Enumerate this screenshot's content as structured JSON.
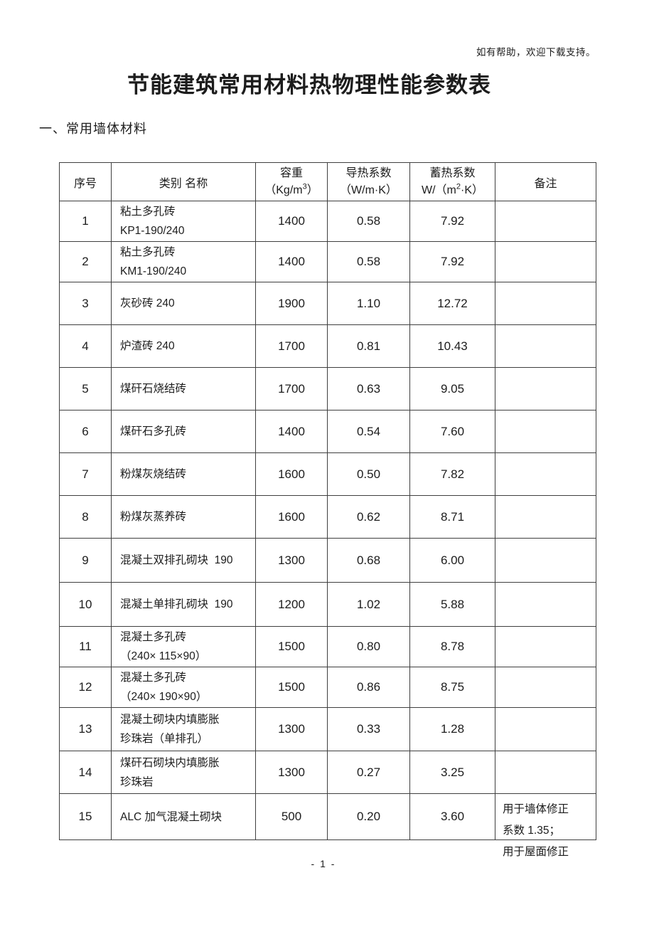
{
  "page": {
    "top_note": "如有帮助，欢迎下载支持。",
    "title": "节能建筑常用材料热物理性能参数表",
    "section_heading": "一、常用墙体材料",
    "page_number": "- 1 -"
  },
  "table": {
    "headers": {
      "index": "序号",
      "name": "类别 名称",
      "density_line1": "容重",
      "density_unit_pre": "（Kg/m",
      "density_unit_sup": "3",
      "density_unit_post": "）",
      "conductivity_line1": "导热系数",
      "conductivity_line2": "（W/m·K）",
      "storage_line1": "蓄热系数",
      "storage_unit_pre": "W/（m",
      "storage_unit_sup": "2",
      "storage_unit_post": "·K）",
      "remark": "备注"
    },
    "rows": [
      {
        "index": "1",
        "name_lines": [
          "粘土多孔砖",
          "KP1-190/240"
        ],
        "density": "1400",
        "conductivity": "0.58",
        "storage": "7.92",
        "remark_lines": []
      },
      {
        "index": "2",
        "name_lines": [
          "粘土多孔砖",
          "KM1-190/240"
        ],
        "density": "1400",
        "conductivity": "0.58",
        "storage": "7.92",
        "remark_lines": []
      },
      {
        "index": "3",
        "name_lines": [
          "灰砂砖 240"
        ],
        "density": "1900",
        "conductivity": "1.10",
        "storage": "12.72",
        "remark_lines": []
      },
      {
        "index": "4",
        "name_lines": [
          "炉渣砖 240"
        ],
        "density": "1700",
        "conductivity": "0.81",
        "storage": "10.43",
        "remark_lines": []
      },
      {
        "index": "5",
        "name_lines": [
          "煤矸石烧结砖"
        ],
        "density": "1700",
        "conductivity": "0.63",
        "storage": "9.05",
        "remark_lines": []
      },
      {
        "index": "6",
        "name_lines": [
          "煤矸石多孔砖"
        ],
        "density": "1400",
        "conductivity": "0.54",
        "storage": "7.60",
        "remark_lines": []
      },
      {
        "index": "7",
        "name_lines": [
          "粉煤灰烧结砖"
        ],
        "density": "1600",
        "conductivity": "0.50",
        "storage": "7.82",
        "remark_lines": []
      },
      {
        "index": "8",
        "name_lines": [
          "粉煤灰蒸养砖"
        ],
        "density": "1600",
        "conductivity": "0.62",
        "storage": "8.71",
        "remark_lines": []
      },
      {
        "index": "9",
        "name_lines": [
          "混凝土双排孔砌块  190"
        ],
        "density": "1300",
        "conductivity": "0.68",
        "storage": "6.00",
        "remark_lines": []
      },
      {
        "index": "10",
        "name_lines": [
          "混凝土单排孔砌块  190"
        ],
        "density": "1200",
        "conductivity": "1.02",
        "storage": "5.88",
        "remark_lines": []
      },
      {
        "index": "11",
        "name_lines": [
          "混凝土多孔砖",
          "（240× 115×90）"
        ],
        "density": "1500",
        "conductivity": "0.80",
        "storage": "8.78",
        "remark_lines": []
      },
      {
        "index": "12",
        "name_lines": [
          "混凝土多孔砖",
          "（240× 190×90）"
        ],
        "density": "1500",
        "conductivity": "0.86",
        "storage": "8.75",
        "remark_lines": []
      },
      {
        "index": "13",
        "name_lines": [
          "混凝土砌块内填膨胀",
          "珍珠岩（单排孔）"
        ],
        "density": "1300",
        "conductivity": "0.33",
        "storage": "1.28",
        "remark_lines": []
      },
      {
        "index": "14",
        "name_lines": [
          "煤矸石砌块内填膨胀",
          "珍珠岩"
        ],
        "density": "1300",
        "conductivity": "0.27",
        "storage": "3.25",
        "remark_lines": []
      },
      {
        "index": "15",
        "name_lines": [
          "ALC 加气混凝土砌块"
        ],
        "density": "500",
        "conductivity": "0.20",
        "storage": "3.60",
        "remark_lines": [
          "用于墙体修正",
          "系数 1.35；",
          "用于屋面修正"
        ]
      }
    ]
  }
}
